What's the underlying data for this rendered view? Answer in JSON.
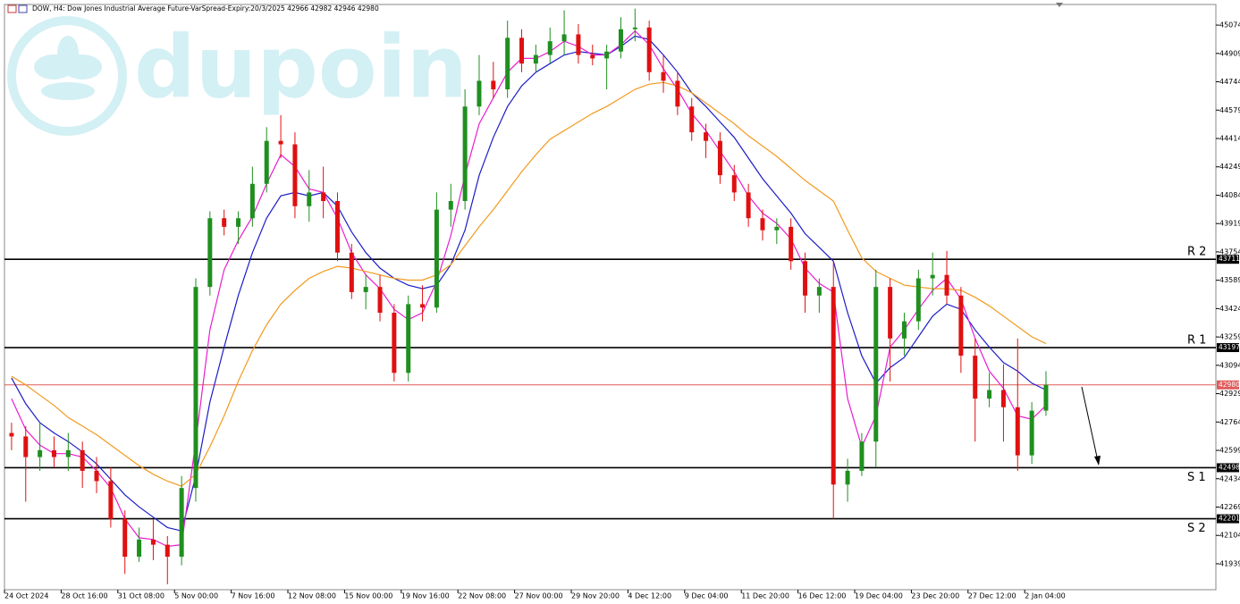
{
  "chart_data": {
    "type": "candlestick",
    "title": "DOW, H4:  Dow Jones Industrial Average Future-VarSpread-Expiry:20/3/2025  42966 42982 42946 42980",
    "watermark": "dupoin",
    "up_color": "#1f8f1f",
    "down_color": "#e01010",
    "categories": [
      "24 Oct 2024",
      null,
      null,
      null,
      "28 Oct 16:00",
      null,
      null,
      null,
      "31 Oct 08:00",
      null,
      null,
      null,
      "5 Nov 00:00",
      null,
      null,
      null,
      "7 Nov 16:00",
      null,
      null,
      null,
      "12 Nov 08:00",
      null,
      null,
      null,
      "15 Nov 00:00",
      null,
      null,
      null,
      "19 Nov 16:00",
      null,
      null,
      null,
      "22 Nov 08:00",
      null,
      null,
      null,
      "27 Nov 00:00",
      null,
      null,
      null,
      "29 Nov 20:00",
      null,
      null,
      null,
      "4 Dec 12:00",
      null,
      null,
      null,
      "9 Dec 04:00",
      null,
      null,
      null,
      "11 Dec 20:00",
      null,
      null,
      null,
      "16 Dec 12:00",
      null,
      null,
      null,
      "19 Dec 04:00",
      null,
      null,
      null,
      "23 Dec 20:00",
      null,
      null,
      null,
      "27 Dec 12:00",
      null,
      null,
      null,
      "2 Jan 04:00",
      null
    ],
    "open": [
      42700,
      42680,
      42560,
      42600,
      42560,
      42600,
      42480,
      42420,
      42200,
      41980,
      42080,
      42050,
      41980,
      42380,
      43550,
      43950,
      43900,
      43950,
      44150,
      44400,
      44380,
      44020,
      44100,
      44050,
      43750,
      43520,
      43550,
      43400,
      43050,
      43450,
      43430,
      44000,
      44050,
      44600,
      44750,
      44700,
      45000,
      44850,
      44900,
      44980,
      45020,
      44900,
      44880,
      44920,
      45050,
      45060,
      44800,
      44750,
      44600,
      44450,
      44400,
      44200,
      44100,
      43950,
      43880,
      43900,
      43700,
      43500,
      43550,
      42400,
      42480,
      42650,
      43550,
      43250,
      43350,
      43600,
      43620,
      43500,
      43150,
      42900,
      42950,
      42850,
      42570,
      42830
    ],
    "high": [
      42760,
      42740,
      42760,
      42680,
      42700,
      42650,
      42560,
      42500,
      42250,
      42150,
      42200,
      42100,
      42450,
      43600,
      43990,
      44000,
      43990,
      44250,
      44480,
      44550,
      44450,
      44230,
      44250,
      44100,
      43800,
      43620,
      43620,
      43450,
      43500,
      43560,
      44100,
      44150,
      44700,
      44900,
      44860,
      45100,
      45050,
      44960,
      45060,
      45160,
      45080,
      44960,
      44960,
      45120,
      45170,
      45100,
      44900,
      44800,
      44650,
      44500,
      44450,
      44260,
      44150,
      44000,
      43950,
      43950,
      43750,
      43600,
      43700,
      42550,
      42700,
      43650,
      43600,
      43400,
      43650,
      43750,
      43760,
      43550,
      43250,
      43050,
      43100,
      43250,
      42880,
      43060
    ],
    "low": [
      42600,
      42300,
      42480,
      42500,
      42480,
      42380,
      42350,
      42150,
      41880,
      41950,
      41960,
      41820,
      41930,
      42300,
      43500,
      43850,
      43800,
      43900,
      44100,
      44300,
      43950,
      43930,
      43950,
      43700,
      43480,
      43420,
      43350,
      43000,
      43000,
      43350,
      43400,
      43900,
      44000,
      44550,
      44650,
      44650,
      44800,
      44800,
      44850,
      44900,
      44850,
      44840,
      44700,
      44880,
      44980,
      44750,
      44680,
      44550,
      44400,
      44300,
      44150,
      44050,
      43900,
      43820,
      43800,
      43650,
      43400,
      43400,
      42200,
      42300,
      42450,
      42500,
      43000,
      43150,
      43300,
      43500,
      43450,
      43050,
      42650,
      42850,
      42650,
      42480,
      42520,
      42800
    ],
    "close": [
      42680,
      42560,
      42600,
      42560,
      42600,
      42480,
      42420,
      42200,
      41980,
      42080,
      42050,
      41980,
      42380,
      43550,
      43950,
      43900,
      43950,
      44150,
      44400,
      44380,
      44020,
      44100,
      44050,
      43750,
      43520,
      43550,
      43400,
      43050,
      43450,
      43430,
      44000,
      44050,
      44600,
      44750,
      44700,
      45000,
      44850,
      44900,
      44980,
      45020,
      44900,
      44880,
      44920,
      45050,
      45060,
      44800,
      44750,
      44600,
      44450,
      44400,
      44200,
      44100,
      43950,
      43880,
      43900,
      43700,
      43500,
      43550,
      42400,
      42480,
      42650,
      43550,
      43250,
      43350,
      43600,
      43620,
      43500,
      43150,
      42900,
      42950,
      42850,
      42570,
      42830,
      42980
    ],
    "lines": [
      {
        "color": "#1c1cc8",
        "values": [
          43020,
          42870,
          42760,
          42700,
          42650,
          42590,
          42520,
          42430,
          42340,
          42270,
          42210,
          42150,
          42130,
          42450,
          42880,
          43200,
          43500,
          43750,
          43950,
          44080,
          44100,
          44080,
          44100,
          44020,
          43870,
          43750,
          43660,
          43600,
          43560,
          43540,
          43560,
          43680,
          43880,
          44200,
          44420,
          44600,
          44720,
          44800,
          44850,
          44900,
          44920,
          44910,
          44900,
          44950,
          45010,
          44990,
          44900,
          44800,
          44680,
          44600,
          44510,
          44420,
          44300,
          44180,
          44080,
          43980,
          43860,
          43780,
          43700,
          43400,
          43150,
          42990,
          43080,
          43140,
          43260,
          43380,
          43450,
          43420,
          43300,
          43200,
          43110,
          43060,
          42990,
          42950
        ]
      },
      {
        "color": "#e81ed0",
        "values": [
          42900,
          42720,
          42630,
          42580,
          42580,
          42560,
          42480,
          42380,
          42200,
          42090,
          42080,
          42040,
          42050,
          42650,
          43300,
          43650,
          43820,
          43960,
          44150,
          44320,
          44250,
          44120,
          44100,
          43950,
          43750,
          43620,
          43540,
          43420,
          43360,
          43400,
          43580,
          43850,
          44200,
          44500,
          44650,
          44800,
          44880,
          44880,
          44920,
          44980,
          44950,
          44900,
          44900,
          44960,
          45040,
          44960,
          44820,
          44700,
          44560,
          44460,
          44340,
          44220,
          44080,
          43980,
          43920,
          43830,
          43660,
          43570,
          43520,
          42900,
          42620,
          42800,
          43200,
          43300,
          43420,
          43530,
          43600,
          43480,
          43250,
          43060,
          42960,
          42800,
          42780,
          42860
        ]
      },
      {
        "color": "#f29a1e",
        "values": [
          43030,
          42980,
          42920,
          42860,
          42790,
          42740,
          42690,
          42630,
          42570,
          42510,
          42460,
          42420,
          42390,
          42460,
          42620,
          42800,
          43000,
          43180,
          43330,
          43450,
          43530,
          43600,
          43640,
          43670,
          43660,
          43640,
          43620,
          43600,
          43590,
          43590,
          43620,
          43680,
          43790,
          43900,
          44000,
          44110,
          44220,
          44320,
          44410,
          44460,
          44510,
          44560,
          44600,
          44650,
          44700,
          44730,
          44740,
          44720,
          44680,
          44620,
          44560,
          44500,
          44430,
          44370,
          44310,
          44240,
          44170,
          44110,
          44050,
          43880,
          43720,
          43640,
          43600,
          43560,
          43550,
          43540,
          43540,
          43530,
          43490,
          43440,
          43380,
          43320,
          43260,
          43220
        ]
      }
    ],
    "levels": [
      {
        "name": "R 2",
        "value": 43711,
        "color": "#000000"
      },
      {
        "name": "R 1",
        "value": 43197,
        "color": "#000000"
      },
      {
        "name": "S 1",
        "value": 42498,
        "color": "#000000"
      },
      {
        "name": "S 2",
        "value": 42201,
        "color": "#000000"
      }
    ],
    "current": {
      "value": 42980,
      "color": "#e05a5a"
    },
    "ylim": [
      41788,
      45194
    ],
    "yticks": [
      45074,
      44909,
      44744,
      44579,
      44414,
      44249,
      44084,
      43919,
      43754,
      43589,
      43424,
      43259,
      43094,
      42929,
      42764,
      42599,
      42434,
      42269,
      42104,
      41939
    ]
  }
}
